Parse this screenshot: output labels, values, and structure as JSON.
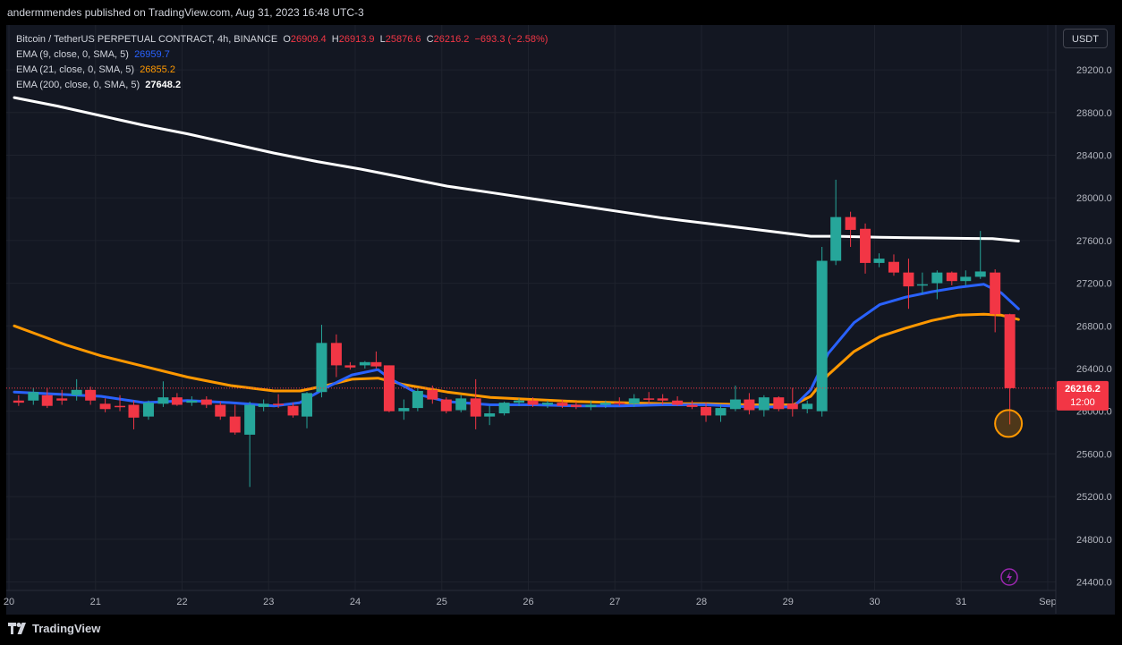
{
  "header": {
    "published": "andermmendes published on TradingView.com, Aug 31, 2023 16:48 UTC-3"
  },
  "legend": {
    "symbol": "Bitcoin / TetherUS PERPETUAL CONTRACT, 4h, BINANCE",
    "o_label": "O",
    "o": "26909.4",
    "h_label": "H",
    "h": "26913.9",
    "l_label": "L",
    "l": "25876.6",
    "c_label": "C",
    "c": "26216.2",
    "change": "−693.3 (−2.58%)",
    "ema9_label": "EMA (9, close, 0, SMA, 5)",
    "ema9_value": "26959.7",
    "ema21_label": "EMA (21, close, 0, SMA, 5)",
    "ema21_value": "26855.2",
    "ema200_label": "EMA (200, close, 0, SMA, 5)",
    "ema200_value": "27648.2"
  },
  "unit_button": "USDT",
  "price_tag": {
    "price": "26216.2",
    "countdown": "12:00"
  },
  "footer": {
    "logo_text": "TradingView"
  },
  "colors": {
    "up": "#26a69a",
    "down": "#f23645",
    "ema9": "#2962ff",
    "ema21": "#ff9800",
    "ema200": "#ffffff",
    "background": "#131722"
  },
  "icons": {
    "alert": "lightning-alert-icon",
    "logo": "tradingview-logo-icon"
  },
  "chart_data": {
    "type": "candlestick",
    "interval": "4h",
    "y_ticks": [
      "24400.0",
      "24800.0",
      "25200.0",
      "25600.0",
      "26000.0",
      "26400.0",
      "26800.0",
      "27200.0",
      "27600.0",
      "28000.0",
      "28400.0",
      "28800.0",
      "29200.0"
    ],
    "x_ticks": [
      "20",
      "21",
      "22",
      "23",
      "24",
      "25",
      "26",
      "27",
      "28",
      "29",
      "30",
      "31",
      "Sep"
    ],
    "ylim": [
      24320,
      29620
    ],
    "candles": [
      {
        "x": 0.05,
        "o": 26100,
        "h": 26150,
        "l": 26050,
        "c": 26080
      },
      {
        "x": 0.22,
        "o": 26100,
        "h": 26220,
        "l": 26060,
        "c": 26180
      },
      {
        "x": 0.38,
        "o": 26150,
        "h": 26220,
        "l": 26030,
        "c": 26050
      },
      {
        "x": 0.55,
        "o": 26120,
        "h": 26200,
        "l": 26060,
        "c": 26100
      },
      {
        "x": 0.72,
        "o": 26150,
        "h": 26300,
        "l": 26100,
        "c": 26200
      },
      {
        "x": 0.88,
        "o": 26200,
        "h": 26230,
        "l": 26060,
        "c": 26100
      },
      {
        "x": 1.05,
        "o": 26070,
        "h": 26120,
        "l": 25990,
        "c": 26020
      },
      {
        "x": 1.22,
        "o": 26050,
        "h": 26150,
        "l": 26000,
        "c": 26040
      },
      {
        "x": 1.38,
        "o": 26060,
        "h": 26100,
        "l": 25830,
        "c": 25940
      },
      {
        "x": 1.55,
        "o": 25950,
        "h": 26100,
        "l": 25920,
        "c": 26080
      },
      {
        "x": 1.72,
        "o": 26070,
        "h": 26280,
        "l": 26040,
        "c": 26130
      },
      {
        "x": 1.88,
        "o": 26130,
        "h": 26170,
        "l": 26050,
        "c": 26060
      },
      {
        "x": 2.05,
        "o": 26080,
        "h": 26140,
        "l": 26050,
        "c": 26100
      },
      {
        "x": 2.22,
        "o": 26110,
        "h": 26140,
        "l": 26030,
        "c": 26060
      },
      {
        "x": 2.38,
        "o": 26060,
        "h": 26090,
        "l": 25920,
        "c": 25950
      },
      {
        "x": 2.55,
        "o": 25950,
        "h": 26060,
        "l": 25780,
        "c": 25800
      },
      {
        "x": 2.72,
        "o": 25780,
        "h": 26090,
        "l": 25290,
        "c": 26060
      },
      {
        "x": 2.88,
        "o": 26040,
        "h": 26110,
        "l": 26000,
        "c": 26070
      },
      {
        "x": 3.05,
        "o": 26070,
        "h": 26160,
        "l": 26030,
        "c": 26060
      },
      {
        "x": 3.22,
        "o": 26050,
        "h": 26080,
        "l": 25940,
        "c": 25960
      },
      {
        "x": 3.38,
        "o": 25950,
        "h": 26180,
        "l": 25840,
        "c": 26170
      },
      {
        "x": 3.55,
        "o": 26180,
        "h": 26810,
        "l": 26130,
        "c": 26640
      },
      {
        "x": 3.72,
        "o": 26640,
        "h": 26720,
        "l": 26320,
        "c": 26430
      },
      {
        "x": 3.88,
        "o": 26430,
        "h": 26460,
        "l": 26390,
        "c": 26410
      },
      {
        "x": 4.05,
        "o": 26430,
        "h": 26470,
        "l": 26400,
        "c": 26460
      },
      {
        "x": 4.18,
        "o": 26460,
        "h": 26560,
        "l": 26400,
        "c": 26420
      },
      {
        "x": 4.33,
        "o": 26430,
        "h": 26430,
        "l": 25990,
        "c": 26000
      },
      {
        "x": 4.5,
        "o": 26000,
        "h": 26110,
        "l": 25920,
        "c": 26030
      },
      {
        "x": 4.66,
        "o": 26030,
        "h": 26220,
        "l": 26000,
        "c": 26190
      },
      {
        "x": 4.83,
        "o": 26200,
        "h": 26240,
        "l": 26070,
        "c": 26110
      },
      {
        "x": 4.99,
        "o": 26110,
        "h": 26130,
        "l": 25980,
        "c": 26000
      },
      {
        "x": 5.16,
        "o": 26010,
        "h": 26150,
        "l": 25990,
        "c": 26120
      },
      {
        "x": 5.33,
        "o": 26120,
        "h": 26300,
        "l": 25830,
        "c": 25950
      },
      {
        "x": 5.49,
        "o": 25950,
        "h": 26050,
        "l": 25870,
        "c": 25980
      },
      {
        "x": 5.66,
        "o": 25980,
        "h": 26090,
        "l": 25960,
        "c": 26080
      },
      {
        "x": 5.83,
        "o": 26080,
        "h": 26120,
        "l": 26050,
        "c": 26100
      },
      {
        "x": 5.99,
        "o": 26100,
        "h": 26130,
        "l": 26040,
        "c": 26060
      },
      {
        "x": 6.16,
        "o": 26060,
        "h": 26100,
        "l": 26030,
        "c": 26080
      },
      {
        "x": 6.33,
        "o": 26080,
        "h": 26110,
        "l": 26030,
        "c": 26050
      },
      {
        "x": 6.49,
        "o": 26060,
        "h": 26090,
        "l": 26020,
        "c": 26040
      },
      {
        "x": 6.66,
        "o": 26040,
        "h": 26100,
        "l": 26010,
        "c": 26060
      },
      {
        "x": 6.83,
        "o": 26060,
        "h": 26100,
        "l": 26030,
        "c": 26080
      },
      {
        "x": 6.99,
        "o": 26080,
        "h": 26130,
        "l": 26050,
        "c": 26070
      },
      {
        "x": 7.16,
        "o": 26070,
        "h": 26160,
        "l": 26040,
        "c": 26120
      },
      {
        "x": 7.33,
        "o": 26120,
        "h": 26180,
        "l": 26070,
        "c": 26110
      },
      {
        "x": 7.49,
        "o": 26120,
        "h": 26160,
        "l": 26060,
        "c": 26100
      },
      {
        "x": 7.66,
        "o": 26100,
        "h": 26140,
        "l": 26050,
        "c": 26060
      },
      {
        "x": 7.83,
        "o": 26060,
        "h": 26100,
        "l": 26020,
        "c": 26040
      },
      {
        "x": 7.99,
        "o": 26040,
        "h": 26080,
        "l": 25900,
        "c": 25960
      },
      {
        "x": 8.16,
        "o": 25960,
        "h": 26060,
        "l": 25900,
        "c": 26030
      },
      {
        "x": 8.33,
        "o": 26020,
        "h": 26240,
        "l": 26000,
        "c": 26110
      },
      {
        "x": 8.49,
        "o": 26110,
        "h": 26170,
        "l": 25970,
        "c": 26010
      },
      {
        "x": 8.66,
        "o": 26010,
        "h": 26150,
        "l": 25950,
        "c": 26130
      },
      {
        "x": 8.83,
        "o": 26130,
        "h": 26140,
        "l": 26000,
        "c": 26020
      },
      {
        "x": 8.99,
        "o": 26070,
        "h": 26220,
        "l": 25950,
        "c": 26020
      },
      {
        "x": 9.16,
        "o": 26020,
        "h": 26100,
        "l": 25980,
        "c": 26070
      },
      {
        "x": 9.33,
        "o": 26000,
        "h": 27540,
        "l": 25950,
        "c": 27410
      },
      {
        "x": 9.49,
        "o": 27410,
        "h": 28170,
        "l": 27370,
        "c": 27820
      },
      {
        "x": 9.66,
        "o": 27820,
        "h": 27870,
        "l": 27540,
        "c": 27700
      },
      {
        "x": 9.83,
        "o": 27710,
        "h": 27760,
        "l": 27290,
        "c": 27390
      },
      {
        "x": 9.99,
        "o": 27390,
        "h": 27480,
        "l": 27350,
        "c": 27430
      },
      {
        "x": 10.16,
        "o": 27400,
        "h": 27470,
        "l": 27270,
        "c": 27300
      },
      {
        "x": 10.33,
        "o": 27300,
        "h": 27430,
        "l": 26960,
        "c": 27170
      },
      {
        "x": 10.49,
        "o": 27180,
        "h": 27300,
        "l": 27100,
        "c": 27190
      },
      {
        "x": 10.66,
        "o": 27200,
        "h": 27320,
        "l": 27050,
        "c": 27300
      },
      {
        "x": 10.83,
        "o": 27300,
        "h": 27310,
        "l": 27180,
        "c": 27220
      },
      {
        "x": 10.99,
        "o": 27220,
        "h": 27320,
        "l": 27180,
        "c": 27260
      },
      {
        "x": 11.16,
        "o": 27260,
        "h": 27690,
        "l": 27240,
        "c": 27310
      },
      {
        "x": 11.33,
        "o": 27300,
        "h": 27330,
        "l": 26740,
        "c": 26910
      },
      {
        "x": 11.5,
        "o": 26909.4,
        "h": 26913.9,
        "l": 25876.6,
        "c": 26216.2
      }
    ],
    "series": [
      {
        "name": "EMA (9, close, 0, SMA, 5)",
        "x": [
          0,
          0.5,
          1.0,
          1.5,
          2.0,
          2.5,
          3.0,
          3.3,
          3.6,
          3.9,
          4.2,
          4.35,
          4.7,
          5.0,
          5.5,
          6.0,
          6.5,
          7.0,
          7.5,
          8.0,
          8.5,
          9.0,
          9.2,
          9.4,
          9.7,
          10.0,
          10.3,
          10.6,
          10.9,
          11.2,
          11.4,
          11.6
        ],
        "y": [
          26180,
          26160,
          26140,
          26080,
          26100,
          26080,
          26050,
          26080,
          26220,
          26340,
          26390,
          26300,
          26150,
          26090,
          26060,
          26060,
          26050,
          26050,
          26060,
          26060,
          26040,
          26040,
          26200,
          26540,
          26830,
          27000,
          27070,
          27120,
          27160,
          27190,
          27110,
          26960
        ]
      },
      {
        "name": "EMA (21, close, 0, SMA, 5)",
        "x": [
          0,
          0.3,
          0.6,
          1.0,
          1.5,
          2.0,
          2.5,
          3.0,
          3.3,
          3.6,
          3.9,
          4.2,
          4.5,
          5.0,
          5.5,
          6.0,
          6.5,
          7.0,
          7.5,
          8.0,
          8.5,
          9.0,
          9.2,
          9.4,
          9.7,
          10.0,
          10.3,
          10.6,
          10.9,
          11.2,
          11.4,
          11.6
        ],
        "y": [
          26800,
          26710,
          26620,
          26520,
          26420,
          26320,
          26240,
          26190,
          26190,
          26240,
          26300,
          26310,
          26250,
          26180,
          26130,
          26110,
          26090,
          26080,
          26070,
          26070,
          26060,
          26060,
          26140,
          26340,
          26560,
          26700,
          26780,
          26850,
          26900,
          26910,
          26900,
          26860
        ]
      },
      {
        "name": "EMA (200, close, 0, SMA, 5)",
        "x": [
          0,
          0.5,
          1.0,
          1.5,
          2.0,
          2.5,
          3.0,
          3.5,
          4.0,
          4.5,
          5.0,
          5.5,
          6.0,
          6.5,
          7.0,
          7.5,
          8.0,
          8.5,
          9.0,
          9.2,
          9.5,
          10.0,
          10.5,
          11.0,
          11.3,
          11.6
        ],
        "y": [
          28940,
          28860,
          28770,
          28680,
          28600,
          28510,
          28420,
          28340,
          28270,
          28190,
          28110,
          28050,
          27990,
          27930,
          27870,
          27810,
          27760,
          27710,
          27660,
          27640,
          27640,
          27630,
          27625,
          27620,
          27618,
          27595
        ]
      }
    ]
  }
}
